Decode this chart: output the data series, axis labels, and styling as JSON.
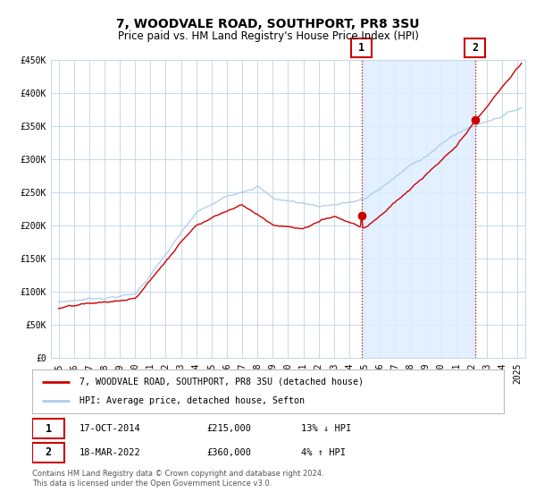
{
  "title": "7, WOODVALE ROAD, SOUTHPORT, PR8 3SU",
  "subtitle": "Price paid vs. HM Land Registry's House Price Index (HPI)",
  "ylim": [
    0,
    450000
  ],
  "yticks": [
    0,
    50000,
    100000,
    150000,
    200000,
    250000,
    300000,
    350000,
    400000,
    450000
  ],
  "ytick_labels": [
    "£0",
    "£50K",
    "£100K",
    "£150K",
    "£200K",
    "£250K",
    "£300K",
    "£350K",
    "£400K",
    "£450K"
  ],
  "xlim_start": 1994.5,
  "xlim_end": 2025.5,
  "xticks": [
    1995,
    1996,
    1997,
    1998,
    1999,
    2000,
    2001,
    2002,
    2003,
    2004,
    2005,
    2006,
    2007,
    2008,
    2009,
    2010,
    2011,
    2012,
    2013,
    2014,
    2015,
    2016,
    2017,
    2018,
    2019,
    2020,
    2021,
    2022,
    2023,
    2024,
    2025
  ],
  "hpi_color": "#aaccee",
  "price_color": "#cc0000",
  "marker_color": "#cc0000",
  "vline_color": "#cc0000",
  "shade_color": "#ddeeff",
  "event1_x": 2014.79,
  "event1_y": 215000,
  "event2_x": 2022.21,
  "event2_y": 360000,
  "legend_label1": "7, WOODVALE ROAD, SOUTHPORT, PR8 3SU (detached house)",
  "legend_label2": "HPI: Average price, detached house, Sefton",
  "event1_date": "17-OCT-2014",
  "event1_price": "£215,000",
  "event1_desc": "13% ↓ HPI",
  "event2_date": "18-MAR-2022",
  "event2_price": "£360,000",
  "event2_desc": "4% ↑ HPI",
  "footer": "Contains HM Land Registry data © Crown copyright and database right 2024.\nThis data is licensed under the Open Government Licence v3.0.",
  "bg_color": "#ffffff",
  "grid_color": "#c8d8e8",
  "title_fontsize": 10,
  "subtitle_fontsize": 8.5,
  "tick_fontsize": 7
}
